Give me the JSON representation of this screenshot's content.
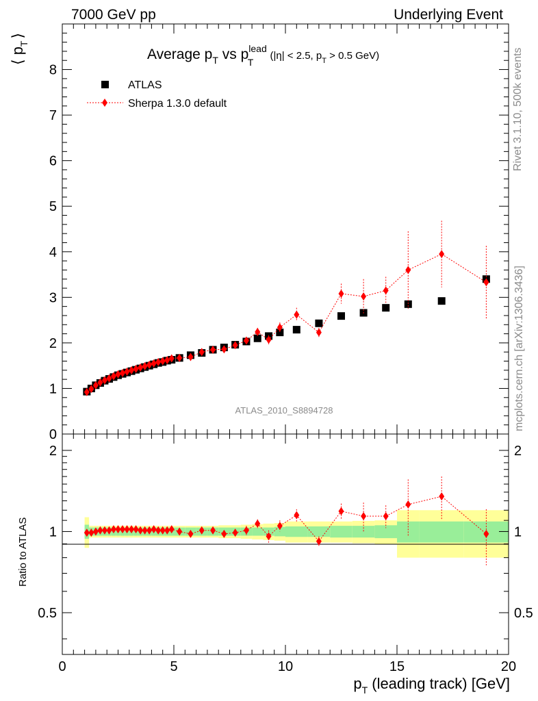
{
  "header": {
    "left": "7000 GeV pp",
    "right": "Underlying Event"
  },
  "side_text": {
    "rivet": "Rivet 3.1.10,  500k events",
    "mcplots": "mcplots.cern.ch [arXiv:1306.3436]"
  },
  "plot_title": {
    "main_a": "Average p",
    "main_sub_a": "T",
    "main_b": " vs p",
    "main_sup_b": "lead",
    "main_sub_b": "T",
    "cut_a": " (|η| < 2.5, p",
    "cut_sub": "T",
    "cut_b": " > 0.5 GeV)"
  },
  "y_axis_label": {
    "open": "⟨ p",
    "sub": "T",
    "close": "⟩"
  },
  "ratio_axis_label": "Ratio to ATLAS",
  "x_axis_label": {
    "main": "p",
    "sub": "T",
    "rest": " (leading track) [GeV]"
  },
  "analysis_id": "ATLAS_2010_S8894728",
  "colors": {
    "data": "#000000",
    "mc": "#ff0000",
    "band_inner": "#99ee99",
    "band_outer": "#ffff99"
  },
  "chart_data": [
    {
      "type": "scatter",
      "panel": "main",
      "xlim": [
        0,
        20
      ],
      "ylim": [
        0,
        9
      ],
      "y_ticks": [
        0,
        1,
        2,
        3,
        4,
        5,
        6,
        7,
        8
      ],
      "x_ticks": [
        0,
        5,
        10,
        15,
        20
      ],
      "legend_placement": "top-left",
      "series": [
        {
          "name": "ATLAS",
          "marker": "square",
          "x": [
            1.1,
            1.3,
            1.5,
            1.7,
            1.9,
            2.1,
            2.3,
            2.5,
            2.7,
            2.9,
            3.1,
            3.3,
            3.5,
            3.7,
            3.9,
            4.1,
            4.3,
            4.5,
            4.7,
            4.9,
            5.25,
            5.75,
            6.25,
            6.75,
            7.25,
            7.75,
            8.25,
            8.75,
            9.25,
            9.75,
            10.5,
            11.5,
            12.5,
            13.5,
            14.5,
            15.5,
            17.0,
            19.0
          ],
          "y": [
            0.93,
            1.0,
            1.07,
            1.12,
            1.17,
            1.21,
            1.25,
            1.29,
            1.32,
            1.35,
            1.38,
            1.41,
            1.44,
            1.47,
            1.5,
            1.53,
            1.56,
            1.58,
            1.61,
            1.63,
            1.67,
            1.73,
            1.78,
            1.85,
            1.9,
            1.96,
            2.03,
            2.1,
            2.15,
            2.23,
            2.29,
            2.43,
            2.59,
            2.66,
            2.77,
            2.85,
            2.92,
            3.4
          ]
        },
        {
          "name": "Sherpa 1.3.0 default",
          "marker": "diamond",
          "line": "dotted",
          "x": [
            1.1,
            1.3,
            1.5,
            1.7,
            1.9,
            2.1,
            2.3,
            2.5,
            2.7,
            2.9,
            3.1,
            3.3,
            3.5,
            3.7,
            3.9,
            4.1,
            4.3,
            4.5,
            4.7,
            4.9,
            5.25,
            5.75,
            6.25,
            6.75,
            7.25,
            7.75,
            8.25,
            8.75,
            9.25,
            9.75,
            10.5,
            11.5,
            12.5,
            13.5,
            14.5,
            15.5,
            17.0,
            19.0
          ],
          "y": [
            0.92,
            0.99,
            1.07,
            1.13,
            1.18,
            1.22,
            1.27,
            1.31,
            1.34,
            1.37,
            1.4,
            1.43,
            1.46,
            1.49,
            1.52,
            1.55,
            1.58,
            1.6,
            1.62,
            1.66,
            1.67,
            1.69,
            1.8,
            1.85,
            1.86,
            1.95,
            2.05,
            2.24,
            2.07,
            2.34,
            2.62,
            2.23,
            3.08,
            3.02,
            3.15,
            3.6,
            3.95,
            3.33
          ],
          "yerr": [
            0.02,
            0.02,
            0.02,
            0.02,
            0.02,
            0.02,
            0.02,
            0.02,
            0.02,
            0.02,
            0.02,
            0.02,
            0.02,
            0.02,
            0.02,
            0.02,
            0.02,
            0.02,
            0.03,
            0.03,
            0.03,
            0.04,
            0.05,
            0.05,
            0.06,
            0.07,
            0.08,
            0.09,
            0.1,
            0.11,
            0.15,
            0.1,
            0.22,
            0.38,
            0.3,
            0.85,
            0.73,
            0.8
          ]
        }
      ]
    },
    {
      "type": "scatter",
      "panel": "ratio",
      "xlim": [
        0,
        20
      ],
      "ylim": [
        0.35,
        2.3
      ],
      "y_ticks": [
        0.5,
        1,
        2
      ],
      "x_ticks": [
        0,
        5,
        10,
        15,
        20
      ],
      "band_x_edges": [
        1.0,
        1.2,
        1.4,
        1.6,
        1.8,
        2.0,
        2.2,
        2.4,
        2.6,
        2.8,
        3.0,
        3.2,
        3.4,
        3.6,
        3.8,
        4.0,
        4.2,
        4.4,
        4.6,
        4.8,
        5.0,
        5.5,
        6.0,
        6.5,
        7.0,
        7.5,
        8.0,
        8.5,
        9.0,
        9.5,
        10.0,
        11.0,
        12.0,
        13.0,
        14.0,
        15.0,
        16.0,
        18.0,
        20.0
      ],
      "band_stat": [
        0.06,
        0.035,
        0.035,
        0.035,
        0.035,
        0.035,
        0.035,
        0.035,
        0.035,
        0.035,
        0.035,
        0.035,
        0.035,
        0.035,
        0.035,
        0.035,
        0.035,
        0.035,
        0.035,
        0.035,
        0.035,
        0.035,
        0.035,
        0.035,
        0.035,
        0.035,
        0.035,
        0.035,
        0.035,
        0.04,
        0.045,
        0.045,
        0.05,
        0.05,
        0.055,
        0.09,
        0.09,
        0.09
      ],
      "band_total": [
        0.13,
        0.05,
        0.05,
        0.05,
        0.05,
        0.05,
        0.05,
        0.05,
        0.05,
        0.05,
        0.05,
        0.05,
        0.05,
        0.05,
        0.05,
        0.05,
        0.05,
        0.05,
        0.05,
        0.05,
        0.05,
        0.05,
        0.05,
        0.05,
        0.055,
        0.055,
        0.06,
        0.065,
        0.07,
        0.075,
        0.09,
        0.09,
        0.09,
        0.095,
        0.1,
        0.2,
        0.2,
        0.2
      ],
      "series": [
        {
          "name": "Sherpa 1.3.0 default",
          "marker": "diamond",
          "line": "dotted",
          "x": [
            1.1,
            1.3,
            1.5,
            1.7,
            1.9,
            2.1,
            2.3,
            2.5,
            2.7,
            2.9,
            3.1,
            3.3,
            3.5,
            3.7,
            3.9,
            4.1,
            4.3,
            4.5,
            4.7,
            4.9,
            5.25,
            5.75,
            6.25,
            6.75,
            7.25,
            7.75,
            8.25,
            8.75,
            9.25,
            9.75,
            10.5,
            11.5,
            12.5,
            13.5,
            14.5,
            15.5,
            17.0,
            19.0
          ],
          "y": [
            0.99,
            0.99,
            1.0,
            1.01,
            1.01,
            1.01,
            1.02,
            1.02,
            1.02,
            1.02,
            1.02,
            1.02,
            1.01,
            1.01,
            1.01,
            1.02,
            1.01,
            1.01,
            1.01,
            1.02,
            1.0,
            0.98,
            1.01,
            1.01,
            0.98,
            0.99,
            1.01,
            1.07,
            0.96,
            1.05,
            1.15,
            0.92,
            1.19,
            1.14,
            1.14,
            1.26,
            1.35,
            0.98
          ],
          "yerr": [
            0.02,
            0.02,
            0.02,
            0.02,
            0.02,
            0.02,
            0.02,
            0.02,
            0.02,
            0.02,
            0.02,
            0.02,
            0.02,
            0.02,
            0.02,
            0.02,
            0.02,
            0.02,
            0.02,
            0.02,
            0.02,
            0.02,
            0.03,
            0.03,
            0.03,
            0.03,
            0.04,
            0.04,
            0.05,
            0.05,
            0.06,
            0.04,
            0.08,
            0.14,
            0.11,
            0.3,
            0.25,
            0.23
          ]
        }
      ]
    }
  ]
}
